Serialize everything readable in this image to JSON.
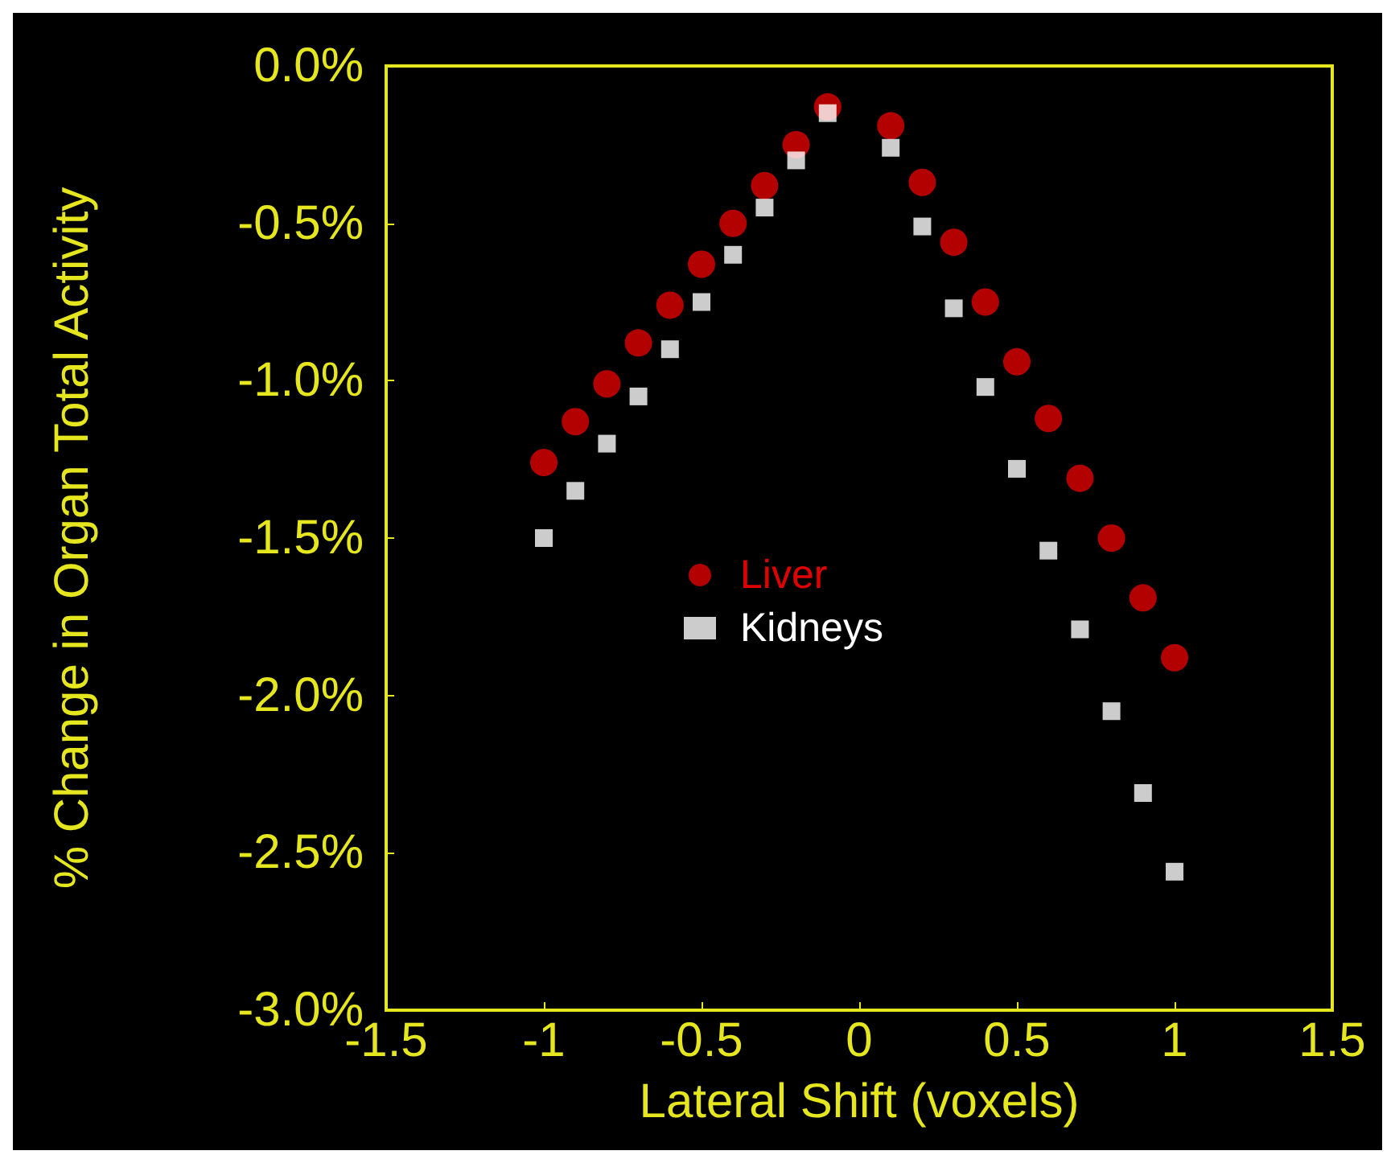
{
  "chart_data": {
    "type": "scatter",
    "xlabel": "Lateral Shift (voxels)",
    "ylabel": "% Change in Organ Total Activity",
    "x": [
      -1,
      -0.9,
      -0.8,
      -0.7,
      -0.6,
      -0.5,
      -0.4,
      -0.3,
      -0.2,
      -0.1,
      0.1,
      0.2,
      0.3,
      0.4,
      0.5,
      0.6,
      0.7,
      0.8,
      0.9,
      1
    ],
    "series": [
      {
        "name": "Liver",
        "color": "#e00000",
        "marker": "circle",
        "values": [
          -1.26,
          -1.13,
          -1.01,
          -0.88,
          -0.76,
          -0.63,
          -0.5,
          -0.38,
          -0.25,
          -0.13,
          -0.19,
          -0.37,
          -0.56,
          -0.75,
          -0.94,
          -1.12,
          -1.31,
          -1.5,
          -1.69,
          -1.88
        ]
      },
      {
        "name": "Kidneys",
        "color": "#ffffff",
        "marker": "square",
        "values": [
          -1.5,
          -1.35,
          -1.2,
          -1.05,
          -0.9,
          -0.75,
          -0.6,
          -0.45,
          -0.3,
          -0.15,
          -0.26,
          -0.51,
          -0.77,
          -1.02,
          -1.28,
          -1.54,
          -1.79,
          -2.05,
          -2.31,
          -2.56
        ]
      }
    ],
    "xlim": [
      -1.5,
      1.5
    ],
    "xticks": [
      -1.5,
      -1,
      -0.5,
      0,
      0.5,
      1,
      1.5
    ],
    "ylim": [
      -3,
      0
    ],
    "yticks": [
      {
        "value": 0,
        "label": "0.0%"
      },
      {
        "value": -0.5,
        "label": "-0.5%"
      },
      {
        "value": -1,
        "label": "-1.0%"
      },
      {
        "value": -1.5,
        "label": "-1.5%"
      },
      {
        "value": -2,
        "label": "-2.0%"
      },
      {
        "value": -2.5,
        "label": "-2.5%"
      },
      {
        "value": -3,
        "label": "-3.0%"
      }
    ],
    "grid": false,
    "legend": "center"
  }
}
